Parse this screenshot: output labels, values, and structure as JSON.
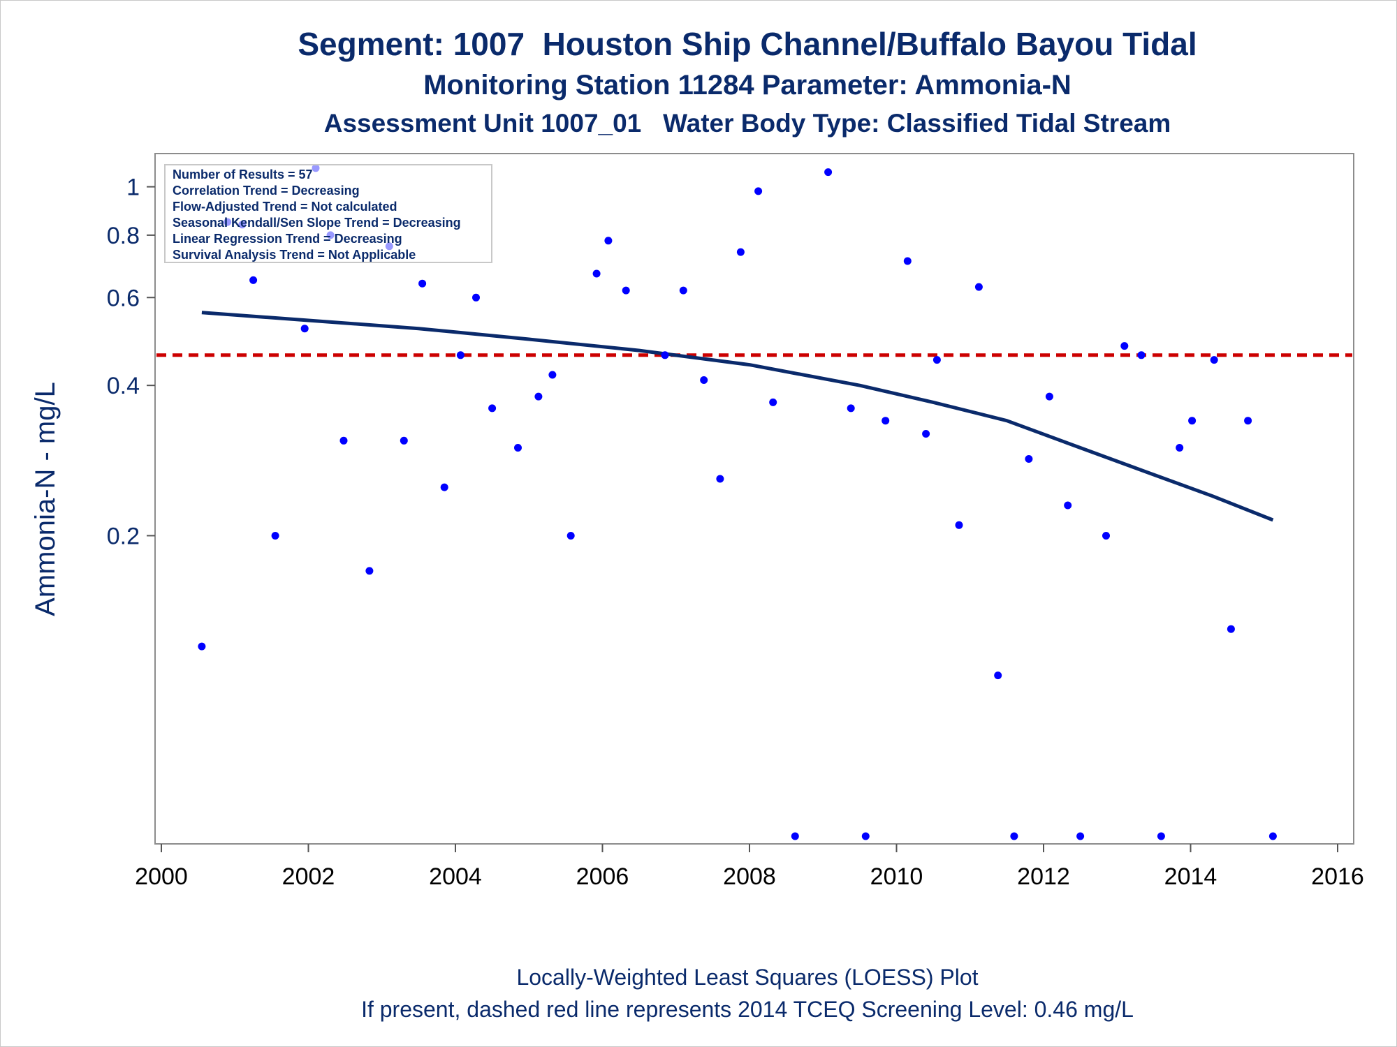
{
  "title": "Segment: 1007  Houston Ship Channel/Buffalo Bayou Tidal",
  "subtitle": "Monitoring Station 11284 Parameter: Ammonia-N",
  "subtitle2": "Assessment Unit 1007_01   Water Body Type: Classified Tidal Stream",
  "footnote1": "Locally-Weighted Least Squares (LOESS) Plot",
  "footnote2": "If present, dashed red line represents 2014 TCEQ Screening Level: 0.46 mg/L",
  "colors": {
    "points": "#0000ff",
    "loess": "#0a2a6b",
    "screening": "#cc0000",
    "text": "#0a2a6b"
  },
  "chart_data": {
    "type": "scatter",
    "title": "Segment: 1007  Houston Ship Channel/Buffalo Bayou Tidal",
    "ylabel": "Ammonia-N - mg/L",
    "xlabel": "",
    "y_scale": "log",
    "xlim": [
      2000,
      2016
    ],
    "ylim": [
      0.05,
      1.1
    ],
    "x_ticks": [
      "2000",
      "2002",
      "2004",
      "2006",
      "2008",
      "2010",
      "2012",
      "2014",
      "2016"
    ],
    "y_ticks": [
      {
        "value": 0.2,
        "label": "0.2"
      },
      {
        "value": 0.4,
        "label": "0.4"
      },
      {
        "value": 0.6,
        "label": "0.6"
      },
      {
        "value": 0.8,
        "label": "0.8"
      },
      {
        "value": 1,
        "label": "1"
      }
    ],
    "grid": false,
    "legend_position": "top-left",
    "stats_box": [
      "Number of Results = 57",
      "Correlation Trend = Decreasing",
      "Flow-Adjusted Trend = Not calculated",
      "Seasonal Kendall/Sen Slope Trend = Decreasing",
      "Linear Regression Trend = Decreasing",
      "Survival Analysis Trend = Not Applicable"
    ],
    "screening_level": 0.46,
    "series": [
      {
        "type": "scatter",
        "points": [
          [
            2000.55,
            0.12
          ],
          [
            2000.9,
            0.85
          ],
          [
            2001.1,
            0.84
          ],
          [
            2001.25,
            0.65
          ],
          [
            2001.55,
            0.2
          ],
          [
            2001.95,
            0.52
          ],
          [
            2002.1,
            1.09
          ],
          [
            2002.3,
            0.8
          ],
          [
            2002.48,
            0.31
          ],
          [
            2002.83,
            0.17
          ],
          [
            2003.1,
            0.76
          ],
          [
            2003.3,
            0.31
          ],
          [
            2003.55,
            0.64
          ],
          [
            2003.85,
            0.25
          ],
          [
            2004.07,
            0.46
          ],
          [
            2004.28,
            0.6
          ],
          [
            2004.5,
            0.36
          ],
          [
            2004.85,
            0.3
          ],
          [
            2005.13,
            0.38
          ],
          [
            2005.32,
            0.42
          ],
          [
            2005.57,
            0.2
          ],
          [
            2005.92,
            0.67
          ],
          [
            2006.08,
            0.78
          ],
          [
            2006.32,
            0.62
          ],
          [
            2006.85,
            0.46
          ],
          [
            2007.1,
            0.62
          ],
          [
            2007.38,
            0.41
          ],
          [
            2007.6,
            0.26
          ],
          [
            2007.88,
            0.74
          ],
          [
            2008.12,
            0.98
          ],
          [
            2008.32,
            0.37
          ],
          [
            2008.62,
            0.05
          ],
          [
            2009.07,
            1.07
          ],
          [
            2009.38,
            0.36
          ],
          [
            2009.58,
            0.05
          ],
          [
            2009.85,
            0.34
          ],
          [
            2010.15,
            0.71
          ],
          [
            2010.4,
            0.32
          ],
          [
            2010.55,
            0.45
          ],
          [
            2010.85,
            0.21
          ],
          [
            2011.12,
            0.63
          ],
          [
            2011.38,
            0.105
          ],
          [
            2011.6,
            0.05
          ],
          [
            2011.8,
            0.285
          ],
          [
            2012.08,
            0.38
          ],
          [
            2012.33,
            0.23
          ],
          [
            2012.5,
            0.05
          ],
          [
            2012.85,
            0.2
          ],
          [
            2013.1,
            0.48
          ],
          [
            2013.33,
            0.46
          ],
          [
            2013.6,
            0.05
          ],
          [
            2013.85,
            0.3
          ],
          [
            2014.02,
            0.34
          ],
          [
            2014.32,
            0.45
          ],
          [
            2014.55,
            0.13
          ],
          [
            2014.78,
            0.34
          ],
          [
            2015.12,
            0.05
          ]
        ]
      },
      {
        "type": "line",
        "name": "LOESS",
        "points": [
          [
            2000.55,
            0.56
          ],
          [
            2002.0,
            0.54
          ],
          [
            2003.5,
            0.52
          ],
          [
            2005.0,
            0.495
          ],
          [
            2006.5,
            0.47
          ],
          [
            2008.0,
            0.44
          ],
          [
            2009.5,
            0.4
          ],
          [
            2010.5,
            0.37
          ],
          [
            2011.5,
            0.34
          ],
          [
            2012.5,
            0.3
          ],
          [
            2013.5,
            0.265
          ],
          [
            2014.3,
            0.24
          ],
          [
            2015.12,
            0.215
          ]
        ]
      }
    ]
  }
}
